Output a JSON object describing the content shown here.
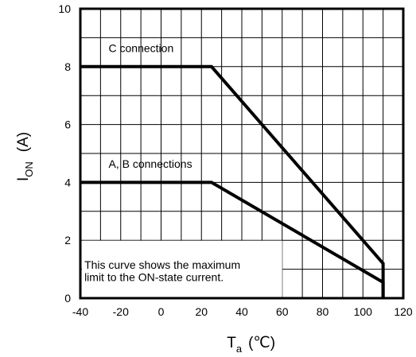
{
  "chart_data": {
    "type": "line",
    "xlim": [
      -40,
      120
    ],
    "ylim": [
      0,
      10
    ],
    "x_ticks": [
      "-40",
      "-20",
      "0",
      "20",
      "40",
      "60",
      "80",
      "100",
      "120"
    ],
    "y_ticks": [
      "0",
      "2",
      "4",
      "6",
      "8",
      "10"
    ],
    "grid": true,
    "xlabel": {
      "main": "T",
      "sub": "a",
      "unit": "(℃)"
    },
    "ylabel": {
      "main": "I",
      "sub": "ON",
      "unit": "(A)"
    },
    "series": [
      {
        "name": "C connection",
        "x": [
          -40,
          25,
          110,
          110
        ],
        "y": [
          8,
          8,
          1.2,
          0
        ]
      },
      {
        "name": "A, B connections",
        "x": [
          -40,
          25,
          110,
          110
        ],
        "y": [
          4,
          4,
          0.55,
          0
        ]
      }
    ],
    "annotation": {
      "line1": "This curve shows the maximum",
      "line2": "limit to the ON-state current."
    }
  }
}
